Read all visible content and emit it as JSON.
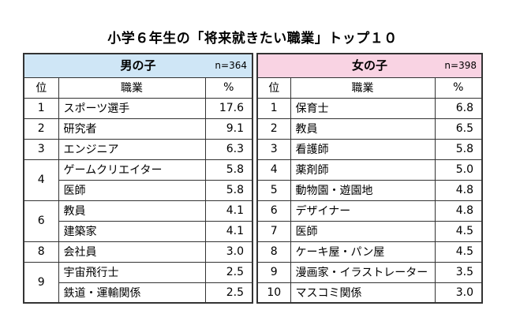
{
  "title": "小学６年生の「将来就きたい職業」トップ１０",
  "columns": {
    "rank": "位",
    "job": "職業",
    "pct": "%"
  },
  "boys": {
    "label": "男の子",
    "n": "n=364",
    "rows": [
      {
        "rank": "1",
        "job": "スポーツ選手",
        "pct": "17.6"
      },
      {
        "rank": "2",
        "job": "研究者",
        "pct": "9.1"
      },
      {
        "rank": "3",
        "job": "エンジニア",
        "pct": "6.3"
      },
      {
        "rank": "4",
        "job": "ゲームクリエイター",
        "pct": "5.8"
      },
      {
        "rank": "",
        "job": "医師",
        "pct": "5.8"
      },
      {
        "rank": "6",
        "job": "教員",
        "pct": "4.1"
      },
      {
        "rank": "",
        "job": "建築家",
        "pct": "4.1"
      },
      {
        "rank": "8",
        "job": "会社員",
        "pct": "3.0"
      },
      {
        "rank": "9",
        "job": "宇宙飛行士",
        "pct": "2.5"
      },
      {
        "rank": "",
        "job": "鉄道・運輸関係",
        "pct": "2.5"
      }
    ]
  },
  "girls": {
    "label": "女の子",
    "n": "n=398",
    "rows": [
      {
        "rank": "1",
        "job": "保育士",
        "pct": "6.8"
      },
      {
        "rank": "2",
        "job": "教員",
        "pct": "6.5"
      },
      {
        "rank": "3",
        "job": "看護師",
        "pct": "5.8"
      },
      {
        "rank": "4",
        "job": "薬剤師",
        "pct": "5.0"
      },
      {
        "rank": "5",
        "job": "動物園・遊園地",
        "pct": "4.8"
      },
      {
        "rank": "6",
        "job": "デザイナー",
        "pct": "4.8"
      },
      {
        "rank": "7",
        "job": "医師",
        "pct": "4.5"
      },
      {
        "rank": "8",
        "job": "ケーキ屋・パン屋",
        "pct": "4.5"
      },
      {
        "rank": "9",
        "job": "漫画家・イラストレーター",
        "pct": "3.5"
      },
      {
        "rank": "10",
        "job": "マスコミ関係",
        "pct": "3.0"
      }
    ]
  },
  "colors": {
    "boys_header": "#cfe6f6",
    "girls_header": "#f9d3e3"
  }
}
